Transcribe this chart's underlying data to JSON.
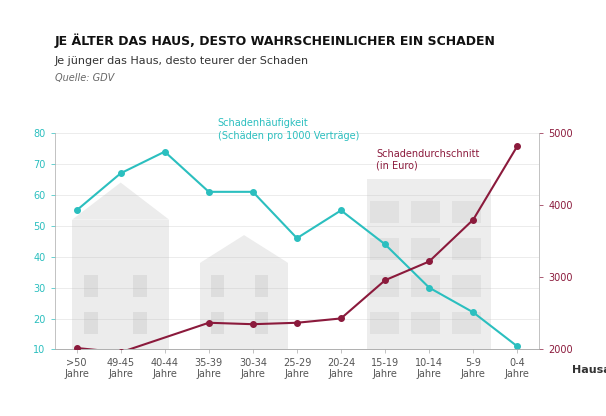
{
  "categories": [
    ">50\nJahre",
    "49-45\nJahre",
    "40-44\nJahre",
    "35-39\nJahre",
    "30-34\nJahre",
    "25-29\nJahre",
    "20-24\nJahre",
    "15-19\nJahre",
    "10-14\nJahre",
    "5-9\nJahre",
    "0-4\nJahre"
  ],
  "frequency": [
    55,
    67,
    74,
    61,
    61,
    46,
    55,
    44,
    30,
    22,
    11
  ],
  "cost_right_axis": [
    2020,
    1960,
    null,
    2370,
    2350,
    2370,
    2430,
    2960,
    3220,
    3800,
    4820
  ],
  "freq_color": "#2BBFBF",
  "cost_color": "#8B1A3C",
  "background_color": "#FFFFFF",
  "title": "JE ÄLTER DAS HAUS, DESTO WAHRSCHEINLICHER EIN SCHADEN",
  "subtitle": "Je jünger das Haus, desto teurer der Schaden",
  "source": "Quelle: GDV",
  "ylabel_right": "Hausalter",
  "ylim_left": [
    10,
    80
  ],
  "ylim_right": [
    2000,
    5000
  ],
  "yticks_left": [
    10,
    20,
    30,
    40,
    50,
    60,
    70,
    80
  ],
  "yticks_right": [
    2000,
    3000,
    4000,
    5000
  ],
  "freq_label": "Schadenhäufigkeit\n(Schäden pro 1000 Verträge)",
  "cost_label": "Schadendurchschnitt\n(in Euro)",
  "title_fontsize": 9,
  "subtitle_fontsize": 8,
  "source_fontsize": 7,
  "tick_fontsize": 7,
  "label_fontsize": 7
}
